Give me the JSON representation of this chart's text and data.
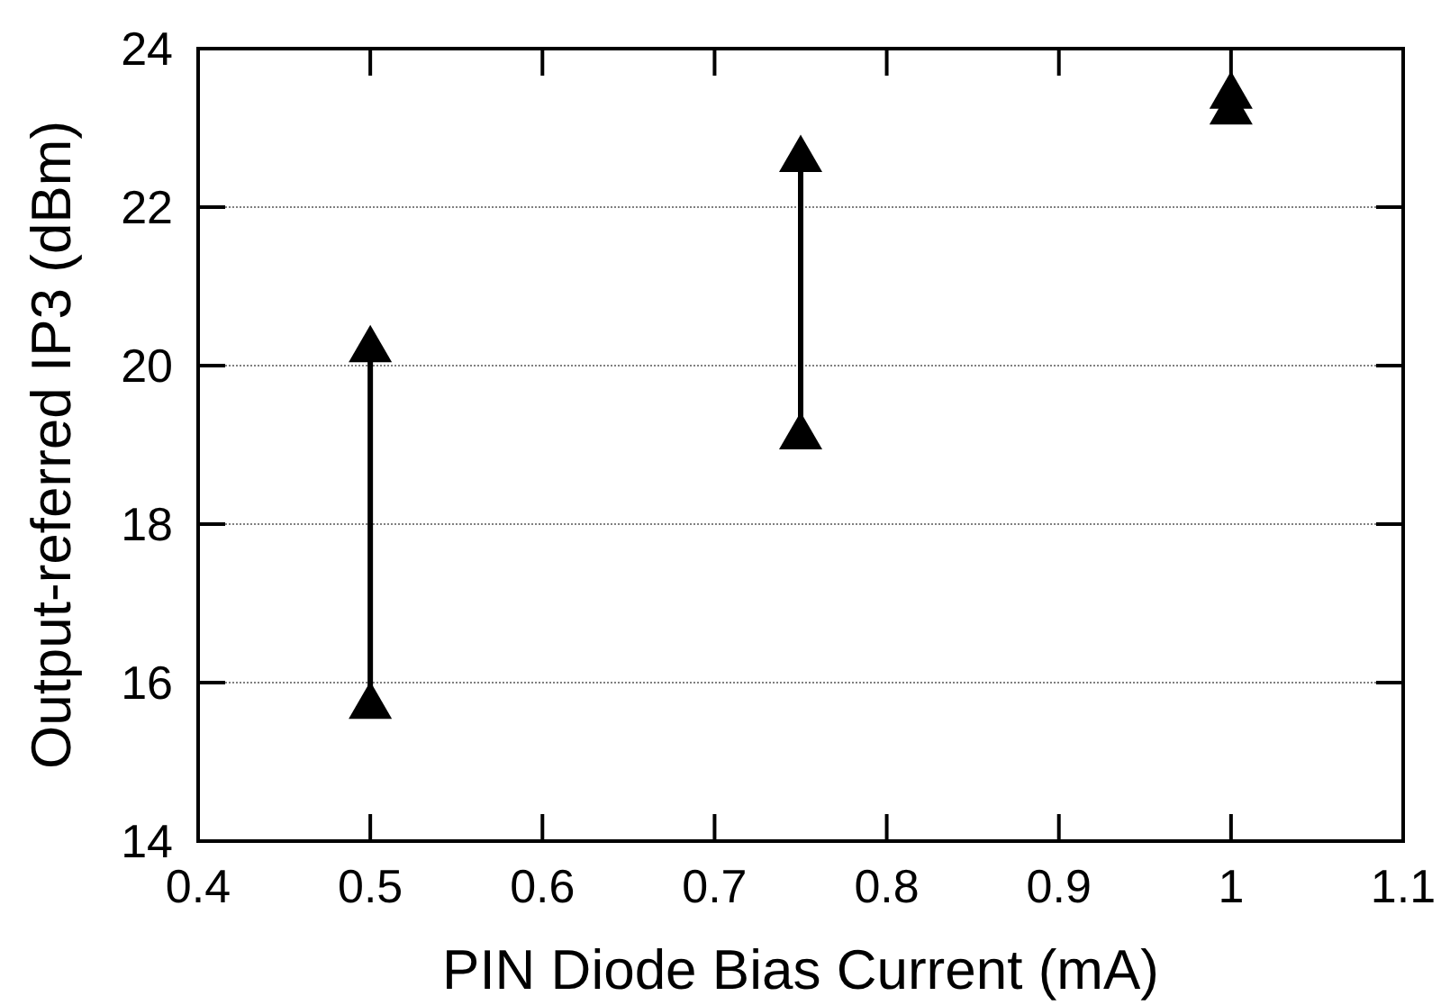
{
  "chart_data": {
    "type": "line",
    "xlabel": "PIN Diode Bias Current (mA)",
    "ylabel": "Output-referred IP3 (dBm)",
    "xlim": [
      0.4,
      1.1
    ],
    "xticks": [
      0.4,
      0.5,
      0.6,
      0.7,
      0.8,
      0.9,
      1,
      1.1
    ],
    "ylim": [
      14,
      24
    ],
    "yticks": [
      14,
      16,
      18,
      20,
      22,
      24
    ],
    "grid": "y",
    "marker": "triangle",
    "line_style": "solid",
    "series": [
      {
        "color": "#000000",
        "x": [
          0.5,
          0.5
        ],
        "values": [
          15.7,
          20.2
        ]
      },
      {
        "color": "#000000",
        "x": [
          0.75,
          0.75
        ],
        "values": [
          19.1,
          22.6
        ]
      },
      {
        "type": "scatter",
        "color": "#000000",
        "x": [
          1,
          1
        ],
        "values": [
          23.2,
          23.4
        ]
      }
    ]
  }
}
